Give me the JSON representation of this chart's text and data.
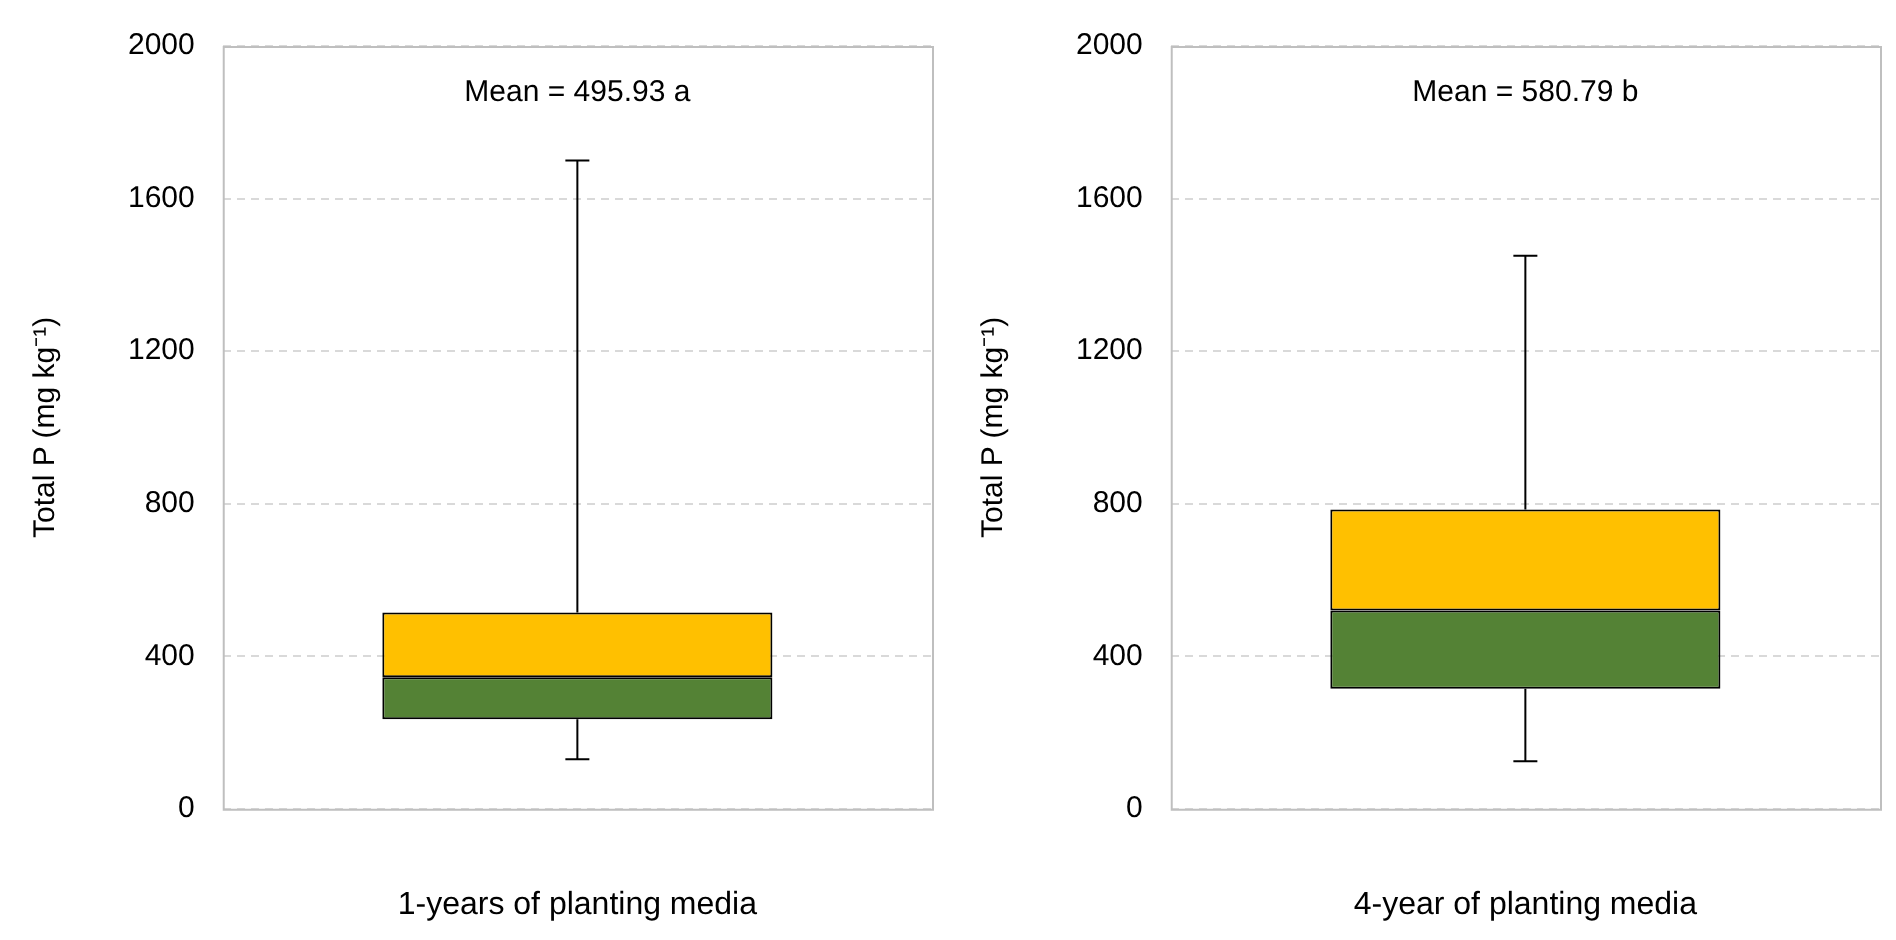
{
  "chart_data": [
    {
      "type": "box",
      "categories": [
        null
      ],
      "xlabel": "1-years of planting media",
      "ylabel": "Total P (mg kg⁻¹)",
      "annotations": [
        "Mean = 495.93 a"
      ],
      "colors": [
        [
          "#548235",
          "#ffc000"
        ]
      ],
      "boxes": [
        {
          "low": 130,
          "q1": 235,
          "median": 345,
          "q3": 515,
          "high": 1700
        }
      ],
      "ylim": [
        0,
        2000
      ],
      "yticks": [
        0,
        400,
        800,
        1200,
        1600,
        2000
      ],
      "grid": "y",
      "line_style": "dashed"
    },
    {
      "type": "box",
      "categories": [
        null
      ],
      "xlabel": "4-year of planting media",
      "ylabel": "Total P (mg kg⁻¹)",
      "annotations": [
        "Mean = 580.79 b"
      ],
      "colors": [
        [
          "#548235",
          "#ffc000"
        ]
      ],
      "boxes": [
        {
          "low": 125,
          "q1": 315,
          "median": 520,
          "q3": 785,
          "high": 1450
        }
      ],
      "ylim": [
        0,
        2000
      ],
      "yticks": [
        0,
        400,
        800,
        1200,
        1600,
        2000
      ],
      "grid": "y",
      "line_style": "dashed"
    }
  ]
}
